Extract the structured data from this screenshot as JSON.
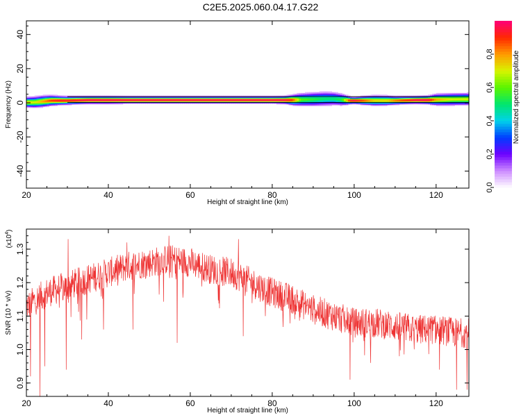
{
  "title": "C2E5.2025.060.04.17.G22",
  "chart_data": [
    {
      "type": "heatmap",
      "xlabel": "Height of straight line (km)",
      "ylabel": "Frequency (Hz)",
      "xlim": [
        20,
        128
      ],
      "ylim": [
        -50,
        48
      ],
      "x_ticks": [
        "20",
        "40",
        "60",
        "80",
        "100",
        "120"
      ],
      "y_ticks": [
        "40",
        "20",
        "0",
        "-20",
        "-40"
      ],
      "colorbar": {
        "label": "Normalized spectral amplitude",
        "range": [
          0,
          1
        ],
        "ticks": [
          "0.0",
          "0.2",
          "0.4",
          "0.6",
          "0.8"
        ]
      },
      "ridge": {
        "x": [
          20,
          22,
          24,
          26,
          28,
          30,
          35,
          40,
          45,
          50,
          55,
          60,
          65,
          70,
          75,
          80,
          83,
          85,
          87,
          90,
          93,
          95,
          97,
          99,
          100,
          102,
          105,
          108,
          110,
          115,
          118,
          120,
          124,
          128
        ],
        "center": [
          0.5,
          0.5,
          1.0,
          1.5,
          1.5,
          1.5,
          1.8,
          1.8,
          1.8,
          1.8,
          1.8,
          1.8,
          1.8,
          1.8,
          1.8,
          1.8,
          1.8,
          1.8,
          2.0,
          2.2,
          2.5,
          2.5,
          2.0,
          1.5,
          1.5,
          1.5,
          1.5,
          1.5,
          1.5,
          1.8,
          1.8,
          2.0,
          2.2,
          2.3
        ],
        "width": [
          2.5,
          2.8,
          2.8,
          2.5,
          2.2,
          2.0,
          1.8,
          1.8,
          1.7,
          1.7,
          1.7,
          1.7,
          1.7,
          1.7,
          1.7,
          1.7,
          1.8,
          2.5,
          3.2,
          3.5,
          3.6,
          3.4,
          3.0,
          1.8,
          1.6,
          2.0,
          2.5,
          2.4,
          2.0,
          1.8,
          2.0,
          2.8,
          3.0,
          3.0
        ],
        "strength": [
          0.75,
          0.7,
          0.8,
          0.9,
          0.95,
          0.95,
          1.0,
          1.0,
          1.0,
          1.0,
          1.0,
          1.0,
          1.0,
          1.0,
          1.0,
          1.0,
          1.0,
          0.9,
          0.6,
          0.55,
          0.5,
          0.5,
          0.55,
          0.95,
          1.0,
          0.9,
          0.75,
          0.75,
          0.85,
          1.0,
          1.0,
          0.8,
          0.7,
          0.7
        ]
      }
    },
    {
      "type": "line",
      "xlabel": "Height of straight line (km)",
      "ylabel": "SNR (10 * v/v)",
      "multiplier": "(x10",
      "multiplier_exp": "4",
      "multiplier_close": ")",
      "xlim": [
        20,
        128
      ],
      "ylim": [
        0.86,
        1.36
      ],
      "x_ticks": [
        "20",
        "40",
        "60",
        "80",
        "100",
        "120"
      ],
      "y_ticks": [
        "0.9",
        "1.0",
        "1.1",
        "1.2",
        "1.3"
      ],
      "color": "#ee3333",
      "trend": {
        "x": [
          20,
          25,
          30,
          35,
          40,
          45,
          50,
          55,
          60,
          65,
          70,
          75,
          80,
          85,
          90,
          95,
          100,
          105,
          110,
          115,
          120,
          125,
          128
        ],
        "y": [
          1.13,
          1.17,
          1.19,
          1.21,
          1.23,
          1.25,
          1.26,
          1.27,
          1.26,
          1.24,
          1.23,
          1.2,
          1.17,
          1.15,
          1.12,
          1.1,
          1.08,
          1.08,
          1.07,
          1.06,
          1.06,
          1.05,
          1.05
        ]
      },
      "noise_amplitude": 0.045,
      "spikes": [
        {
          "x": 21.0,
          "y": 0.92
        },
        {
          "x": 23.3,
          "y": 0.86
        },
        {
          "x": 24.5,
          "y": 0.95
        },
        {
          "x": 29.7,
          "y": 0.94
        },
        {
          "x": 33.5,
          "y": 1.03
        },
        {
          "x": 38.8,
          "y": 1.06
        },
        {
          "x": 46.0,
          "y": 1.06
        },
        {
          "x": 56.8,
          "y": 1.02
        },
        {
          "x": 72.9,
          "y": 1.04
        },
        {
          "x": 99.0,
          "y": 0.91
        },
        {
          "x": 104.0,
          "y": 0.96
        },
        {
          "x": 111.0,
          "y": 0.98
        },
        {
          "x": 120.8,
          "y": 0.94
        },
        {
          "x": 125.0,
          "y": 0.88
        },
        {
          "x": 127.5,
          "y": 0.88
        },
        {
          "x": 54.8,
          "y": 1.34
        },
        {
          "x": 71.8,
          "y": 1.33
        },
        {
          "x": 44.5,
          "y": 1.32
        },
        {
          "x": 30.2,
          "y": 1.33
        }
      ]
    }
  ]
}
